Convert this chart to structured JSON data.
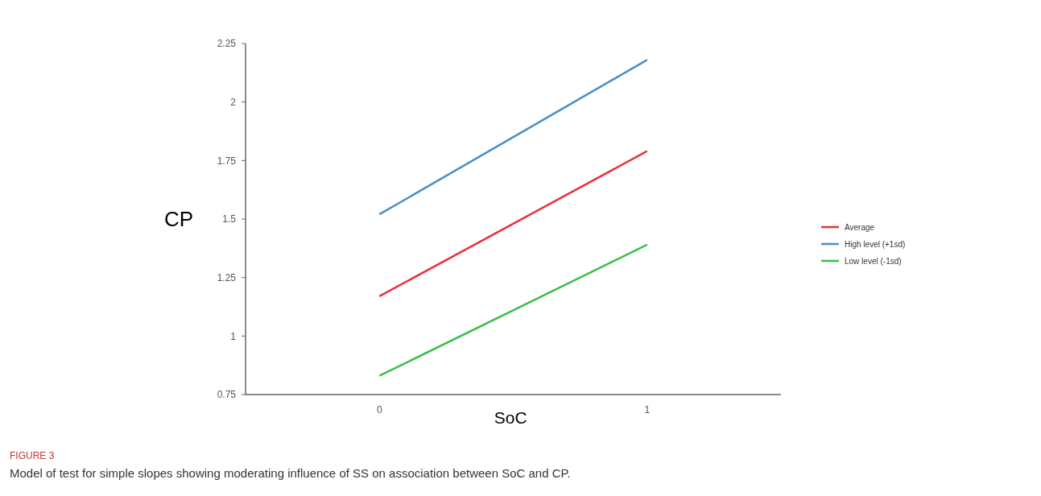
{
  "chart_data": {
    "type": "line",
    "xlabel": "SoC",
    "ylabel": "CP",
    "categories": [
      "0",
      "1"
    ],
    "ylim": [
      0.75,
      2.25
    ],
    "yticks": [
      0.75,
      1,
      1.25,
      1.5,
      1.75,
      2,
      2.25
    ],
    "grid": false,
    "legend": "right",
    "marker": "none",
    "line_style": "solid",
    "series": [
      {
        "name": "Average",
        "color": "#e8323c",
        "values": [
          1.17,
          1.79
        ]
      },
      {
        "name": "High level (+1sd)",
        "color": "#4a90c8",
        "values": [
          1.52,
          2.18
        ]
      },
      {
        "name": "Low level (-1sd)",
        "color": "#3cbf4a",
        "values": [
          0.83,
          1.39
        ]
      }
    ],
    "annotations": [
      "FIGURE 3",
      "Model of test for simple slopes showing moderating influence of SS on association between SoC and CP."
    ]
  }
}
